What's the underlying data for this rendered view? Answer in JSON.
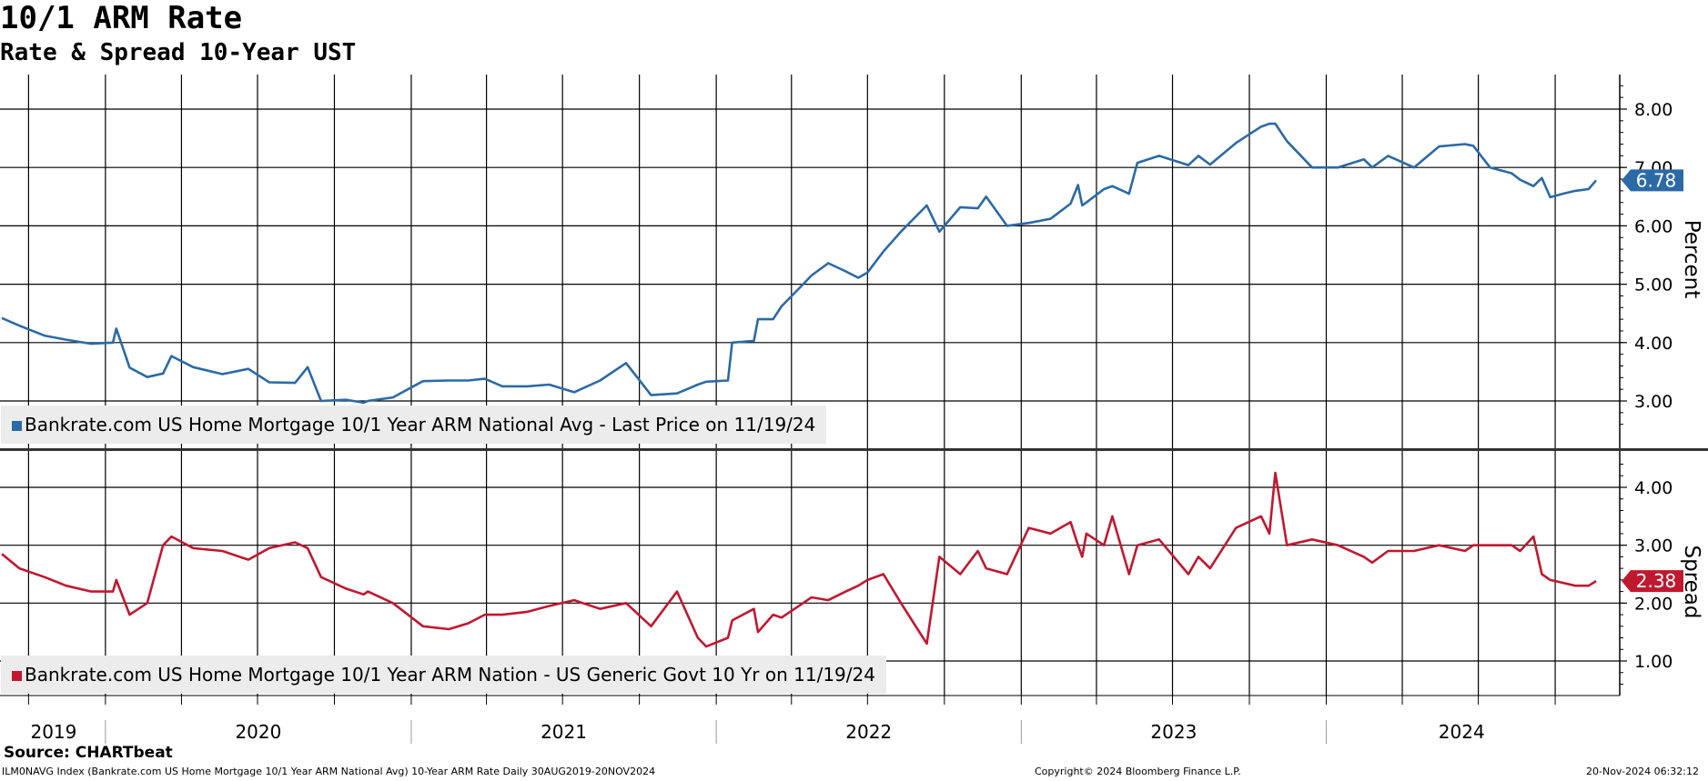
{
  "header": {
    "title": "10/1 ARM Rate",
    "subtitle": "Rate & Spread 10-Year UST"
  },
  "colors": {
    "rate": "#2b6aa6",
    "spread": "#c0182f",
    "grid": "#000000"
  },
  "chart_data": [
    {
      "type": "line",
      "ylabel": "Percent",
      "ylim": [
        2.6,
        8.6
      ],
      "ticks": [
        "3.00",
        "4.00",
        "5.00",
        "6.00",
        "7.00",
        "8.00"
      ],
      "last_value": "6.78",
      "legend": "Bankrate.com US Home Mortgage 10/1 Year ARM National Avg - Last Price on 11/19/24",
      "series": [
        {
          "name": "Bankrate.com US Home Mortgage 10/1 Year ARM National Avg",
          "x": [
            "2019-08-30",
            "2019-09-20",
            "2019-10-20",
            "2019-11-15",
            "2019-12-15",
            "2020-01-10",
            "2020-01-14",
            "2020-01-30",
            "2020-02-20",
            "2020-03-10",
            "2020-03-20",
            "2020-04-15",
            "2020-05-20",
            "2020-06-20",
            "2020-07-15",
            "2020-08-15",
            "2020-08-30",
            "2020-09-15",
            "2020-10-15",
            "2020-11-05",
            "2020-11-10",
            "2020-12-10",
            "2021-01-15",
            "2021-02-15",
            "2021-03-10",
            "2021-03-30",
            "2021-04-20",
            "2021-05-20",
            "2021-06-15",
            "2021-07-15",
            "2021-08-15",
            "2021-09-15",
            "2021-10-15",
            "2021-11-15",
            "2021-12-10",
            "2021-12-20",
            "2022-01-15",
            "2022-01-20",
            "2022-02-15",
            "2022-02-20",
            "2022-03-10",
            "2022-03-20",
            "2022-04-15",
            "2022-04-25",
            "2022-05-15",
            "2022-06-05",
            "2022-06-20",
            "2022-07-01",
            "2022-07-20",
            "2022-08-10",
            "2022-09-10",
            "2022-09-25",
            "2022-10-20",
            "2022-11-10",
            "2022-11-20",
            "2022-12-15",
            "2023-01-10",
            "2023-02-05",
            "2023-03-01",
            "2023-03-10",
            "2023-03-15",
            "2023-03-20",
            "2023-04-10",
            "2023-04-20",
            "2023-05-10",
            "2023-05-20",
            "2023-06-15",
            "2023-07-20",
            "2023-08-01",
            "2023-08-15",
            "2023-09-15",
            "2023-10-15",
            "2023-10-25",
            "2023-11-01",
            "2023-11-15",
            "2023-12-15",
            "2024-01-15",
            "2024-02-15",
            "2024-02-25",
            "2024-03-15",
            "2024-04-15",
            "2024-05-15",
            "2024-06-15",
            "2024-06-25",
            "2024-07-15",
            "2024-08-10",
            "2024-08-20",
            "2024-09-05",
            "2024-09-15",
            "2024-09-25",
            "2024-10-10",
            "2024-10-25",
            "2024-11-10",
            "2024-11-19"
          ],
          "values": [
            4.42,
            4.29,
            4.12,
            4.05,
            3.98,
            4.0,
            4.24,
            3.57,
            3.41,
            3.47,
            3.77,
            3.58,
            3.46,
            3.55,
            3.32,
            3.31,
            3.58,
            3.0,
            3.02,
            2.97,
            3.0,
            3.06,
            3.34,
            3.35,
            3.35,
            3.38,
            3.25,
            3.25,
            3.28,
            3.15,
            3.35,
            3.65,
            3.1,
            3.13,
            3.28,
            3.33,
            3.35,
            4.0,
            4.03,
            4.4,
            4.4,
            4.62,
            5.0,
            5.15,
            5.36,
            5.22,
            5.11,
            5.2,
            5.56,
            5.9,
            6.35,
            5.9,
            6.32,
            6.3,
            6.5,
            6.0,
            6.05,
            6.12,
            6.38,
            6.7,
            6.35,
            6.4,
            6.63,
            6.68,
            6.55,
            7.08,
            7.2,
            7.04,
            7.2,
            7.05,
            7.42,
            7.7,
            7.75,
            7.75,
            7.45,
            7.0,
            7.0,
            7.14,
            7.0,
            7.2,
            7.0,
            7.36,
            7.4,
            7.37,
            7.0,
            6.9,
            6.79,
            6.68,
            6.82,
            6.49,
            6.55,
            6.6,
            6.63,
            6.78
          ]
        }
      ]
    },
    {
      "type": "line",
      "ylabel": "Spread",
      "ylim": [
        0.5,
        4.6
      ],
      "ticks": [
        "1.00",
        "2.00",
        "3.00",
        "4.00"
      ],
      "last_value": "2.38",
      "legend": "Bankrate.com US Home Mortgage 10/1 Year ARM Nation - US Generic Govt 10 Yr on 11/19/24",
      "series": [
        {
          "name": "Bankrate.com US Home Mortgage 10/1 Year ARM Nation - US Generic Govt 10 Yr",
          "x": [
            "2019-08-30",
            "2019-09-20",
            "2019-10-20",
            "2019-11-15",
            "2019-12-15",
            "2020-01-10",
            "2020-01-14",
            "2020-01-30",
            "2020-02-20",
            "2020-03-10",
            "2020-03-20",
            "2020-04-15",
            "2020-05-20",
            "2020-06-20",
            "2020-07-15",
            "2020-08-15",
            "2020-08-30",
            "2020-09-15",
            "2020-10-15",
            "2020-11-05",
            "2020-11-10",
            "2020-12-10",
            "2021-01-15",
            "2021-02-15",
            "2021-03-10",
            "2021-03-30",
            "2021-04-20",
            "2021-05-20",
            "2021-06-15",
            "2021-07-15",
            "2021-08-15",
            "2021-09-15",
            "2021-10-15",
            "2021-11-15",
            "2021-12-10",
            "2021-12-20",
            "2022-01-15",
            "2022-01-20",
            "2022-02-15",
            "2022-02-20",
            "2022-03-10",
            "2022-03-20",
            "2022-04-15",
            "2022-04-25",
            "2022-05-15",
            "2022-06-05",
            "2022-06-20",
            "2022-07-01",
            "2022-07-20",
            "2022-08-10",
            "2022-09-10",
            "2022-09-25",
            "2022-10-20",
            "2022-11-10",
            "2022-11-20",
            "2022-12-15",
            "2023-01-10",
            "2023-02-05",
            "2023-03-01",
            "2023-03-10",
            "2023-03-15",
            "2023-03-20",
            "2023-04-10",
            "2023-04-20",
            "2023-05-10",
            "2023-05-20",
            "2023-06-15",
            "2023-07-20",
            "2023-08-01",
            "2023-08-15",
            "2023-09-15",
            "2023-10-15",
            "2023-10-25",
            "2023-11-01",
            "2023-11-15",
            "2023-12-15",
            "2024-01-15",
            "2024-02-15",
            "2024-02-25",
            "2024-03-15",
            "2024-04-15",
            "2024-05-15",
            "2024-06-15",
            "2024-06-25",
            "2024-07-15",
            "2024-08-10",
            "2024-08-20",
            "2024-09-05",
            "2024-09-15",
            "2024-09-25",
            "2024-10-10",
            "2024-10-25",
            "2024-11-10",
            "2024-11-19"
          ],
          "values": [
            2.85,
            2.6,
            2.45,
            2.3,
            2.2,
            2.2,
            2.4,
            1.8,
            2.0,
            3.0,
            3.15,
            2.95,
            2.9,
            2.75,
            2.95,
            3.05,
            2.95,
            2.45,
            2.25,
            2.15,
            2.2,
            2.0,
            1.6,
            1.55,
            1.65,
            1.8,
            1.8,
            1.85,
            1.95,
            2.05,
            1.9,
            2.0,
            1.6,
            2.2,
            1.4,
            1.25,
            1.4,
            1.7,
            1.9,
            1.5,
            1.8,
            1.75,
            2.0,
            2.1,
            2.05,
            2.2,
            2.3,
            2.4,
            2.5,
            2.0,
            1.3,
            2.8,
            2.5,
            2.9,
            2.6,
            2.5,
            3.3,
            3.2,
            3.4,
            3.0,
            2.8,
            3.2,
            3.0,
            3.5,
            2.5,
            3.0,
            3.1,
            2.5,
            2.8,
            2.6,
            3.3,
            3.5,
            3.2,
            4.25,
            3.0,
            3.1,
            3.0,
            2.8,
            2.7,
            2.9,
            2.9,
            3.0,
            2.9,
            3.0,
            3.0,
            3.0,
            2.9,
            3.15,
            2.5,
            2.4,
            2.35,
            2.3,
            2.3,
            2.38
          ]
        }
      ]
    }
  ],
  "x_axis": {
    "years": [
      "2019",
      "2020",
      "2021",
      "2022",
      "2023",
      "2024"
    ]
  },
  "footer": {
    "source": "Source: CHARTbeat",
    "left": "ILM0NAVG Index (Bankrate.com US Home Mortgage 10/1 Year ARM National Avg) 10-Year ARM Rate  Daily 30AUG2019-20NOV2024",
    "center": "Copyright© 2024 Bloomberg Finance L.P.",
    "right": "20-Nov-2024 06:32:12"
  }
}
